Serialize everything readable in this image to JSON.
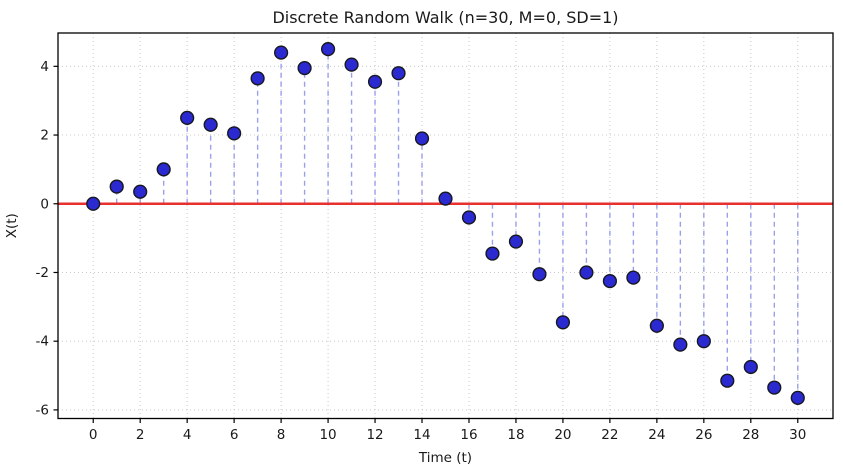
{
  "chart_data": {
    "type": "scatter",
    "style": "stem",
    "title": "Discrete Random Walk (n=30, M=0, SD=1)",
    "xlabel": "Time (t)",
    "ylabel": "X(t)",
    "x": [
      0,
      1,
      2,
      3,
      4,
      5,
      6,
      7,
      8,
      9,
      10,
      11,
      12,
      13,
      14,
      15,
      16,
      17,
      18,
      19,
      20,
      21,
      22,
      23,
      24,
      25,
      26,
      27,
      28,
      29,
      30
    ],
    "values": [
      0.0,
      0.5,
      0.35,
      1.0,
      2.5,
      2.3,
      2.05,
      3.65,
      4.4,
      3.95,
      4.5,
      4.05,
      3.55,
      3.8,
      1.9,
      0.15,
      -0.4,
      -1.45,
      -1.1,
      -2.05,
      -3.45,
      -2.0,
      -2.25,
      -2.15,
      -3.55,
      -4.1,
      -4.0,
      -5.15,
      -4.75,
      -5.35,
      -5.65
    ],
    "xlim": [
      -1.5,
      31.5
    ],
    "ylim": [
      -6.25,
      4.97
    ],
    "xticks": [
      0,
      2,
      4,
      6,
      8,
      10,
      12,
      14,
      16,
      18,
      20,
      22,
      24,
      26,
      28,
      30
    ],
    "yticks": [
      -6,
      -4,
      -2,
      0,
      2,
      4
    ],
    "grid": true,
    "legend": "none",
    "baseline": {
      "y": 0,
      "color": "#e8312f",
      "width": 2.5
    },
    "colors": {
      "marker_fill": "#2a2ad0",
      "marker_edge": "#17171f",
      "stem": "#9aa0ea",
      "grid": "#c9c9c9",
      "spine": "#000000",
      "tick": "#000000",
      "text": "#1a1a1a",
      "background": "#ffffff"
    }
  }
}
